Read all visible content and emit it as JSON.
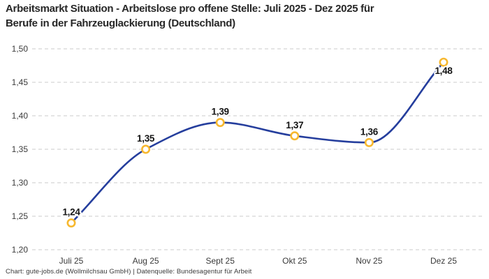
{
  "title_line1": "Arbeitsmarkt Situation - Arbeitslose pro offene Stelle: Juli 2025 - Dez 2025 für",
  "title_line2": "Berufe in der Fahrzeuglackierung (Deutschland)",
  "footer": "Chart: gute-jobs.de (Wollmilchsau GmbH) | Datenquelle: Bundesagentur für Arbeit",
  "colors": {
    "background": "#FFFFFF",
    "line": "#253E9D",
    "marker": "#F7B82F",
    "marker_fill": "#FFFFFF",
    "grid": "#CBCBCB",
    "title_text": "#272727",
    "axis_text": "#3A3A3A",
    "point_label_text": "#141414"
  },
  "chart_data": {
    "type": "line",
    "title": "Arbeitsmarkt Situation - Arbeitslose pro offene Stelle: Juli 2025 - Dez 2025 für Berufe in der Fahrzeuglackierung (Deutschland)",
    "source": "Chart: gute-jobs.de (Wollmilchsau GmbH) | Datenquelle: Bundesagentur für Arbeit",
    "categories": [
      "Juli 25",
      "Aug 25",
      "Sept 25",
      "Okt 25",
      "Nov 25",
      "Dez 25"
    ],
    "values": [
      1.24,
      1.35,
      1.39,
      1.37,
      1.36,
      1.48
    ],
    "point_labels": [
      "1,24",
      "1,35",
      "1,39",
      "1,37",
      "1,36",
      "1,48"
    ],
    "point_label_positions": [
      "above",
      "above",
      "above",
      "above",
      "above",
      "below"
    ],
    "yticks": [
      1.5,
      1.45,
      1.4,
      1.35,
      1.3,
      1.25,
      1.2
    ],
    "ytick_labels": [
      "1,50",
      "1,45",
      "1,40",
      "1,35",
      "1,30",
      "1,25",
      "1,20"
    ],
    "ylim": [
      1.2,
      1.5
    ],
    "xlabel": "",
    "ylabel": "",
    "grid": "horizontal-dashed",
    "legend": "none",
    "curve": "smooth-monotone",
    "marker_style": "open-circle"
  }
}
